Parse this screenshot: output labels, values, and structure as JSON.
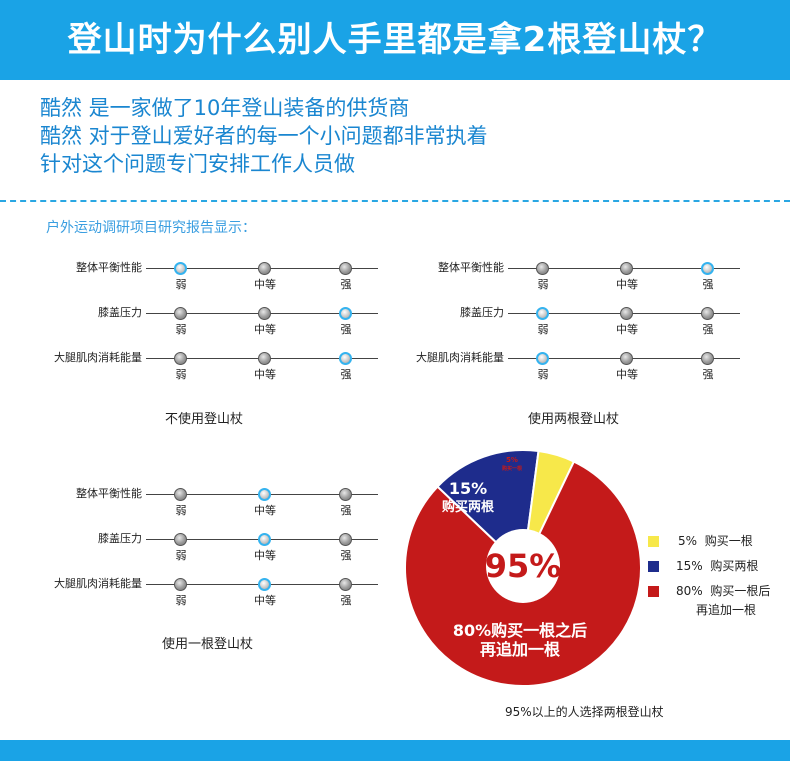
{
  "banner": {
    "title": "登山时为什么别人手里都是拿2根登山杖？",
    "color": "#1aa3e6"
  },
  "intro": {
    "lines": [
      "酷然 是一家做了10年登山装备的供货商",
      "酷然 对于登山爱好者的每一个小问题都非常执着",
      "针对这个问题专门安排工作人员做"
    ]
  },
  "subtitle": "户外运动调研项目研究报告显示：",
  "scale_labels": [
    "弱",
    "中等",
    "强"
  ],
  "panels": [
    {
      "caption": "不使用登山杖",
      "rows": [
        {
          "label": "整体平衡性能",
          "level": "弱"
        },
        {
          "label": "膝盖压力",
          "level": "强"
        },
        {
          "label": "大腿肌肉消耗能量",
          "level": "强"
        }
      ]
    },
    {
      "caption": "使用两根登山杖",
      "rows": [
        {
          "label": "整体平衡性能",
          "level": "强"
        },
        {
          "label": "膝盖压力",
          "level": "弱"
        },
        {
          "label": "大腿肌肉消耗能量",
          "level": "弱"
        }
      ]
    },
    {
      "caption": "使用一根登山杖",
      "rows": [
        {
          "label": "整体平衡性能",
          "level": "中等"
        },
        {
          "label": "膝盖压力",
          "level": "中等"
        },
        {
          "label": "大腿肌肉消耗能量",
          "level": "中等"
        }
      ]
    }
  ],
  "chart_data": {
    "type": "pie",
    "title": "",
    "slices": [
      {
        "label": "购买一根",
        "value": 5,
        "color": "#f7e84a"
      },
      {
        "label": "购买两根",
        "value": 15,
        "color": "#1e2c8c"
      },
      {
        "label": "购买一根后再追加一根",
        "value": 80,
        "color": "#c41a1a"
      }
    ],
    "center_label": "95%",
    "slice_labels": {
      "small_pct": "5%",
      "small_text": "购买一根",
      "mid_pct": "15%",
      "mid_text": "购买两根",
      "big_line1": "80%购买一根之后",
      "big_line2": "再追加一根"
    },
    "legend": [
      {
        "pct": "5%",
        "text": "购买一根",
        "color": "#f7e84a"
      },
      {
        "pct": "15%",
        "text": "购买两根",
        "color": "#1e2c8c"
      },
      {
        "pct": "80%",
        "text": "购买一根后",
        "text2": "再追加一根",
        "color": "#c41a1a"
      }
    ],
    "caption": "95%以上的人选择两根登山杖"
  }
}
